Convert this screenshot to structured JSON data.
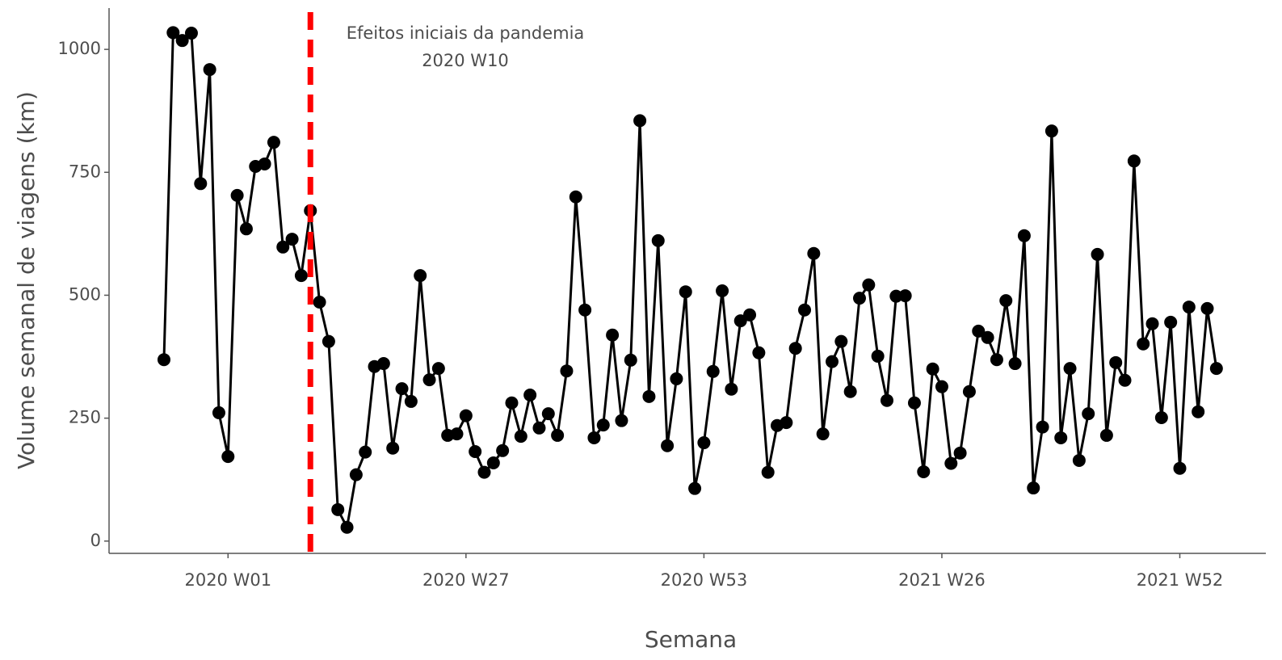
{
  "chart_data": {
    "type": "line",
    "xlabel": "Semana",
    "ylabel": "Volume semanal de viagens (km)",
    "x": [
      -7,
      -6,
      -5,
      -4,
      -3,
      -2,
      -1,
      0,
      1,
      2,
      3,
      4,
      5,
      6,
      7,
      8,
      9,
      10,
      11,
      12,
      13,
      14,
      15,
      16,
      17,
      18,
      19,
      20,
      21,
      22,
      23,
      24,
      25,
      26,
      27,
      28,
      29,
      30,
      31,
      32,
      33,
      34,
      35,
      36,
      37,
      38,
      39,
      40,
      41,
      42,
      43,
      44,
      45,
      46,
      47,
      48,
      49,
      50,
      51,
      52,
      53,
      54,
      55,
      56,
      57,
      58,
      59,
      60,
      61,
      62,
      63,
      64,
      65,
      66,
      67,
      68,
      69,
      70,
      71,
      72,
      73,
      74,
      75,
      76,
      77,
      78,
      79,
      80,
      81,
      82,
      83,
      84,
      85,
      86,
      87,
      88,
      89,
      90,
      91,
      92,
      93,
      94,
      95,
      96,
      97,
      98,
      99,
      100,
      101,
      102,
      103,
      104,
      105,
      106,
      107,
      108
    ],
    "series": [
      {
        "name": "Volume",
        "color": "#000000",
        "values": [
          369,
          1034,
          1018,
          1033,
          727,
          959,
          261,
          172,
          703,
          635,
          762,
          767,
          811,
          598,
          614,
          540,
          672,
          486,
          406,
          64,
          28,
          135,
          181,
          355,
          361,
          189,
          310,
          284,
          540,
          328,
          351,
          215,
          218,
          255,
          182,
          140,
          159,
          184,
          281,
          213,
          297,
          230,
          259,
          215,
          346,
          700,
          470,
          210,
          236,
          419,
          245,
          368,
          855,
          294,
          611,
          194,
          330,
          507,
          107,
          200,
          345,
          509,
          309,
          448,
          460,
          383,
          140,
          235,
          241,
          392,
          470,
          585,
          218,
          365,
          406,
          304,
          494,
          521,
          376,
          286,
          498,
          499,
          281,
          141,
          350,
          314,
          158,
          179,
          304,
          427,
          414,
          369,
          489,
          361,
          621,
          108,
          232,
          834,
          210,
          351,
          164,
          259,
          583,
          215,
          363,
          327,
          773,
          401,
          442,
          251,
          445,
          148,
          476,
          263,
          473,
          351
        ]
      }
    ],
    "xlim": [
      -13,
      113.4
    ],
    "ylim": [
      -25,
      1084
    ],
    "xticks": [
      {
        "value": 0,
        "label": "2020 W01"
      },
      {
        "value": 26,
        "label": "2020 W27"
      },
      {
        "value": 52,
        "label": "2020 W53"
      },
      {
        "value": 78,
        "label": "2021 W26"
      },
      {
        "value": 104,
        "label": "2021 W52"
      }
    ],
    "yticks": [
      0,
      250,
      500,
      750,
      1000
    ],
    "grid": false,
    "vline": {
      "x": 9,
      "color": "#ff0000",
      "annotation": [
        "Efeitos iniciais da pandemia",
        "2020 W10"
      ]
    }
  }
}
